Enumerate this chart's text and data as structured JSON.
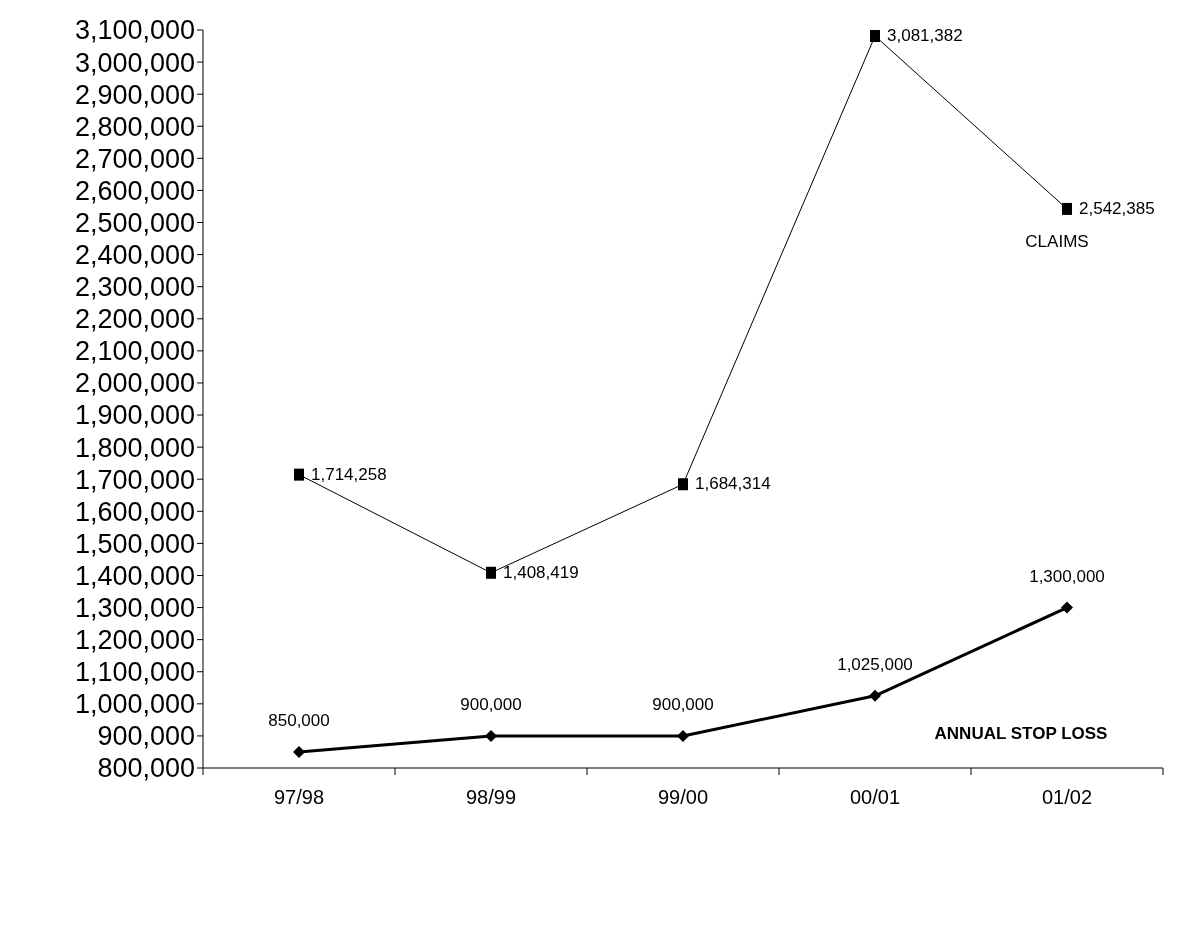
{
  "chart_data": {
    "type": "line",
    "categories": [
      "97/98",
      "98/99",
      "99/00",
      "00/01",
      "01/02"
    ],
    "series": [
      {
        "name": "CLAIMS",
        "color": "#000000",
        "marker": "square",
        "values": [
          1714258,
          1408419,
          1684314,
          3081382,
          2542385
        ],
        "value_labels": [
          "1,714,258",
          "1,408,419",
          "1,684,314",
          "3,081,382",
          "2,542,385"
        ]
      },
      {
        "name": "ANNUAL STOP LOSS",
        "color": "#000000",
        "marker": "diamond",
        "values": [
          850000,
          900000,
          900000,
          1025000,
          1300000
        ],
        "value_labels": [
          "850,000",
          "900,000",
          "900,000",
          "1,025,000",
          "1,300,000"
        ]
      }
    ],
    "ylim": [
      800000,
      3100000
    ],
    "yticks": [
      {
        "value": 800000,
        "label": "800,000"
      },
      {
        "value": 900000,
        "label": "900,000"
      },
      {
        "value": 1000000,
        "label": "1,000,000"
      },
      {
        "value": 1100000,
        "label": "1,100,000"
      },
      {
        "value": 1200000,
        "label": "1,200,000"
      },
      {
        "value": 1300000,
        "label": "1,300,000"
      },
      {
        "value": 1400000,
        "label": "1,400,000"
      },
      {
        "value": 1500000,
        "label": "1,500,000"
      },
      {
        "value": 1600000,
        "label": "1,600,000"
      },
      {
        "value": 1700000,
        "label": "1,700,000"
      },
      {
        "value": 1800000,
        "label": "1,800,000"
      },
      {
        "value": 1900000,
        "label": "1,900,000"
      },
      {
        "value": 2000000,
        "label": "2,000,000"
      },
      {
        "value": 2100000,
        "label": "2,100,000"
      },
      {
        "value": 2200000,
        "label": "2,200,000"
      },
      {
        "value": 2300000,
        "label": "2,300,000"
      },
      {
        "value": 2400000,
        "label": "2,400,000"
      },
      {
        "value": 2500000,
        "label": "2,500,000"
      },
      {
        "value": 2600000,
        "label": "2,600,000"
      },
      {
        "value": 2700000,
        "label": "2,700,000"
      },
      {
        "value": 2800000,
        "label": "2,800,000"
      },
      {
        "value": 2900000,
        "label": "2,900,000"
      },
      {
        "value": 3000000,
        "label": "3,000,000"
      },
      {
        "value": 3100000,
        "label": "3,100,000"
      }
    ],
    "legend": false,
    "grid": false
  }
}
